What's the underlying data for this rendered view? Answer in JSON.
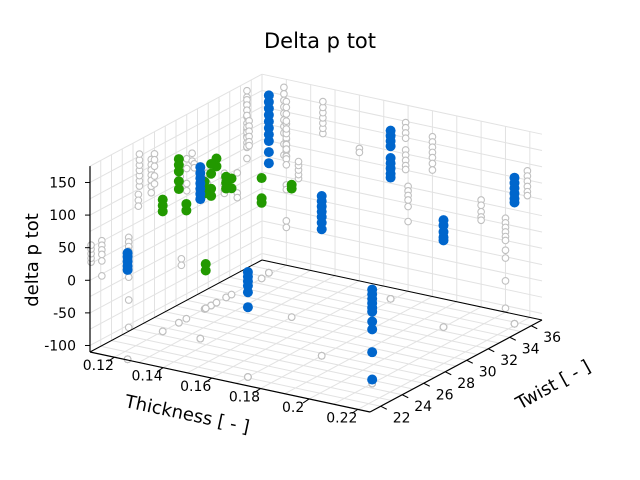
{
  "chart_data": {
    "type": "scatter",
    "projection": "3d",
    "title": "Delta p tot",
    "xlabel": "Thickness [ - ]",
    "ylabel": "Twist [ - ]",
    "zlabel": "delta p tot",
    "xlim": [
      0.11,
      0.225
    ],
    "ylim": [
      21,
      37
    ],
    "zlim": [
      -110,
      175
    ],
    "xticks": [
      "0.12",
      "0.14",
      "0.16",
      "0.18",
      "0.2",
      "0.22"
    ],
    "yticks": [
      "22",
      "24",
      "26",
      "28",
      "30",
      "32",
      "34",
      "36"
    ],
    "zticks": [
      "-100",
      "-50",
      "0",
      "50",
      "100",
      "150"
    ],
    "grid": true,
    "wall_projections": true,
    "colors": {
      "blue": "#0066cc",
      "green": "#229900",
      "projection": "#c0c0c0"
    },
    "series": [
      {
        "name": "blue",
        "color": "#0066cc",
        "points": [
          [
            0.125,
            21.1,
            27
          ],
          [
            0.125,
            21.1,
            33
          ],
          [
            0.125,
            21.1,
            40
          ],
          [
            0.125,
            21.1,
            47
          ],
          [
            0.125,
            21.1,
            53
          ],
          [
            0.135,
            25.6,
            104
          ],
          [
            0.135,
            25.6,
            112
          ],
          [
            0.135,
            25.6,
            120
          ],
          [
            0.135,
            25.6,
            128
          ],
          [
            0.135,
            25.6,
            136
          ],
          [
            0.135,
            25.6,
            144
          ],
          [
            0.135,
            25.6,
            153
          ],
          [
            0.119,
            35.6,
            162
          ],
          [
            0.119,
            35.6,
            152
          ],
          [
            0.119,
            35.6,
            142
          ],
          [
            0.119,
            35.6,
            132
          ],
          [
            0.119,
            35.6,
            122
          ],
          [
            0.119,
            35.6,
            112
          ],
          [
            0.119,
            35.6,
            102
          ],
          [
            0.119,
            35.6,
            92
          ],
          [
            0.119,
            35.6,
            75
          ],
          [
            0.119,
            35.6,
            58
          ],
          [
            0.17,
            22.1,
            51
          ],
          [
            0.17,
            22.1,
            44
          ],
          [
            0.17,
            22.1,
            37
          ],
          [
            0.17,
            22.1,
            30
          ],
          [
            0.17,
            22.1,
            20
          ],
          [
            0.17,
            22.1,
            -3
          ],
          [
            0.18,
            26.7,
            135
          ],
          [
            0.18,
            26.7,
            127
          ],
          [
            0.18,
            26.7,
            119
          ],
          [
            0.18,
            26.7,
            111
          ],
          [
            0.18,
            26.7,
            103
          ],
          [
            0.18,
            26.7,
            94
          ],
          [
            0.18,
            26.7,
            84
          ],
          [
            0.21,
            24.6,
            34
          ],
          [
            0.21,
            24.6,
            27
          ],
          [
            0.21,
            24.6,
            20
          ],
          [
            0.21,
            24.6,
            13
          ],
          [
            0.21,
            24.6,
            6
          ],
          [
            0.21,
            24.6,
            0
          ],
          [
            0.21,
            24.6,
            -15
          ],
          [
            0.21,
            24.6,
            -27
          ],
          [
            0.21,
            24.6,
            -62
          ],
          [
            0.21,
            24.6,
            -104
          ],
          [
            0.169,
            35.6,
            148
          ],
          [
            0.169,
            35.6,
            140
          ],
          [
            0.169,
            35.6,
            132
          ],
          [
            0.169,
            35.6,
            124
          ],
          [
            0.169,
            35.6,
            106
          ],
          [
            0.169,
            35.6,
            98
          ],
          [
            0.169,
            35.6,
            90
          ],
          [
            0.169,
            35.6,
            82
          ],
          [
            0.169,
            35.6,
            76
          ],
          [
            0.2,
            33.5,
            54
          ],
          [
            0.2,
            33.5,
            46
          ],
          [
            0.2,
            33.5,
            36
          ],
          [
            0.2,
            33.5,
            28
          ],
          [
            0.2,
            33.5,
            23
          ],
          [
            0.219,
            35.8,
            114
          ],
          [
            0.219,
            35.8,
            106
          ],
          [
            0.219,
            35.8,
            98
          ],
          [
            0.219,
            35.8,
            90
          ],
          [
            0.219,
            35.8,
            82
          ],
          [
            0.219,
            35.8,
            76
          ]
        ]
      },
      {
        "name": "green",
        "color": "#229900",
        "points": [
          [
            0.12,
            25.5,
            92
          ],
          [
            0.12,
            25.5,
            83
          ],
          [
            0.12,
            25.5,
            74
          ],
          [
            0.12,
            27.0,
            141
          ],
          [
            0.12,
            27.0,
            132
          ],
          [
            0.12,
            27.0,
            122
          ],
          [
            0.12,
            27.0,
            107
          ],
          [
            0.12,
            27.0,
            95
          ],
          [
            0.12,
            27.7,
            66
          ],
          [
            0.12,
            27.7,
            56
          ],
          [
            0.12,
            29.4,
            85
          ],
          [
            0.12,
            29.4,
            76
          ],
          [
            0.12,
            29.4,
            67
          ],
          [
            0.12,
            30.0,
            107
          ],
          [
            0.12,
            30.0,
            92
          ],
          [
            0.12,
            30.0,
            69
          ],
          [
            0.12,
            30.0,
            58
          ],
          [
            0.12,
            30.5,
            111
          ],
          [
            0.12,
            30.5,
            99
          ],
          [
            0.12,
            31.4,
            75
          ],
          [
            0.12,
            31.4,
            66
          ],
          [
            0.12,
            31.4,
            57
          ],
          [
            0.12,
            31.9,
            68
          ],
          [
            0.12,
            31.9,
            53
          ],
          [
            0.12,
            29.5,
            -42
          ],
          [
            0.12,
            29.5,
            -52
          ],
          [
            0.12,
            34.7,
            44
          ],
          [
            0.12,
            34.7,
            13
          ],
          [
            0.12,
            34.7,
            6
          ],
          [
            0.15,
            30.7,
            93
          ],
          [
            0.15,
            30.7,
            87
          ]
        ]
      }
    ]
  }
}
